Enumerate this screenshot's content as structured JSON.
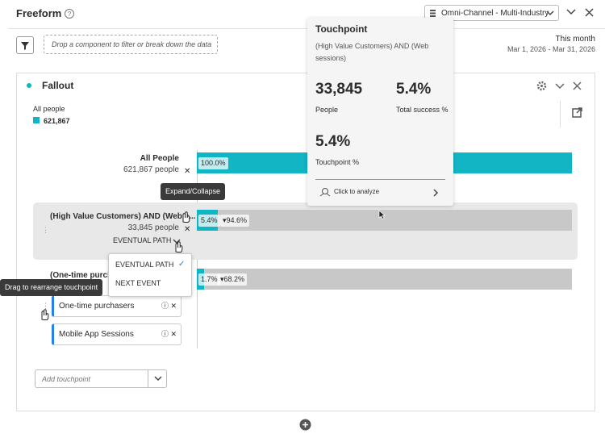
{
  "header": {
    "title": "Freeform",
    "dataset": "Omni-Channel - Multi-Industry"
  },
  "drop_zone": "Drop a component to filter or break down the data",
  "date_range": {
    "label": "This month",
    "range": "Mar 1, 2026 - Mar 31, 2026"
  },
  "panel": {
    "title": "Fallout",
    "legend": {
      "label": "All people",
      "value": "621,867"
    },
    "rows": [
      {
        "label": "All People",
        "count": "621,867 people",
        "bar_label": "100.0%"
      },
      {
        "label": "(High Value Customers) AND (Web s...",
        "count": "33,845 people",
        "bar_label": "5.4%",
        "drop_label": "▾94.6%",
        "path": "EVENTUAL PATH"
      },
      {
        "label": "(One-time purcha",
        "bar_label": "1.7%",
        "drop_label": "▾68.2%",
        "segments": [
          "One-time purchasers",
          "Mobile App Sessions"
        ]
      }
    ],
    "menu": [
      "EVENTUAL PATH",
      "NEXT EVENT"
    ],
    "add_touchpoint": "Add touchpoint"
  },
  "tooltips": {
    "expand": "Expand/Collapse",
    "drag": "Drag to rearrange touchpoint"
  },
  "popover": {
    "title": "Touchpoint",
    "subtitle": "(High Value Customers) AND (Web sessions)",
    "metrics": [
      {
        "value": "33,845",
        "label": "People"
      },
      {
        "value": "5.4%",
        "label": "Total success %"
      },
      {
        "value": "5.4%",
        "label": "Touchpoint %"
      }
    ],
    "action": "Click to analyze"
  }
}
